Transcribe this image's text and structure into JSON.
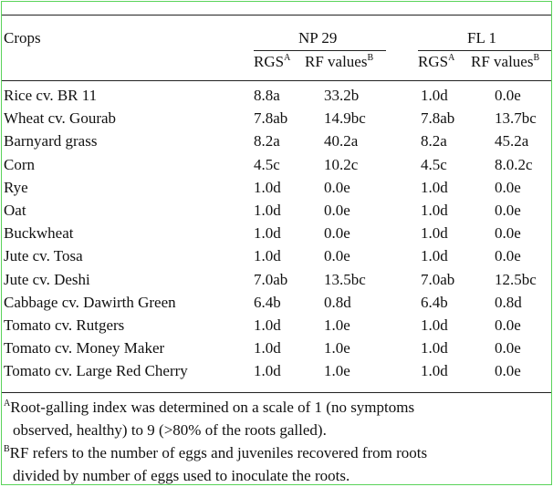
{
  "table": {
    "header": {
      "crops_label": "Crops",
      "group1": "NP 29",
      "group2": "FL 1",
      "rgs_label": "RGS",
      "rgs_sup": "A",
      "rf_label": "RF values",
      "rf_sup": "B"
    },
    "rows": [
      {
        "crop": "Rice cv. BR 11",
        "np_rgs": "8.8a",
        "np_rf": "33.2b",
        "fl_rgs": "1.0d",
        "fl_rf": "0.0e"
      },
      {
        "crop": "Wheat cv. Gourab",
        "np_rgs": "7.8ab",
        "np_rf": "14.9bc",
        "fl_rgs": "7.8ab",
        "fl_rf": "13.7bc"
      },
      {
        "crop": "Barnyard grass",
        "np_rgs": "8.2a",
        "np_rf": "40.2a",
        "fl_rgs": "8.2a",
        "fl_rf": "45.2a"
      },
      {
        "crop": "Corn",
        "np_rgs": "4.5c",
        "np_rf": "10.2c",
        "fl_rgs": "4.5c",
        "fl_rf": "8.0.2c"
      },
      {
        "crop": "Rye",
        "np_rgs": "1.0d",
        "np_rf": "0.0e",
        "fl_rgs": "1.0d",
        "fl_rf": "0.0e"
      },
      {
        "crop": "Oat",
        "np_rgs": "1.0d",
        "np_rf": "0.0e",
        "fl_rgs": "1.0d",
        "fl_rf": "0.0e"
      },
      {
        "crop": "Buckwheat",
        "np_rgs": "1.0d",
        "np_rf": "0.0e",
        "fl_rgs": "1.0d",
        "fl_rf": "0.0e"
      },
      {
        "crop": "Jute cv. Tosa",
        "np_rgs": "1.0d",
        "np_rf": "0.0e",
        "fl_rgs": "1.0d",
        "fl_rf": "0.0e"
      },
      {
        "crop": "Jute cv. Deshi",
        "np_rgs": "7.0ab",
        "np_rf": "13.5bc",
        "fl_rgs": "7.0ab",
        "fl_rf": "12.5bc"
      },
      {
        "crop": "Cabbage cv. Dawirth Green",
        "np_rgs": "6.4b",
        "np_rf": "0.8d",
        "fl_rgs": "6.4b",
        "fl_rf": "0.8d"
      },
      {
        "crop": "Tomato cv. Rutgers",
        "np_rgs": "1.0d",
        "np_rf": "1.0e",
        "fl_rgs": "1.0d",
        "fl_rf": "0.0e"
      },
      {
        "crop": "Tomato cv. Money Maker",
        "np_rgs": "1.0d",
        "np_rf": "1.0e",
        "fl_rgs": "1.0d",
        "fl_rf": "0.0e"
      },
      {
        "crop": "Tomato cv. Large Red Cherry",
        "np_rgs": "1.0d",
        "np_rf": "1.0e",
        "fl_rgs": "1.0d",
        "fl_rf": "0.0e"
      }
    ]
  },
  "footnotes": {
    "a_marker": "A",
    "a_line1": "Root-galling index was determined on a scale of 1 (no symptoms",
    "a_line2": "observed, healthy) to 9 (>80% of the roots galled).",
    "b_marker": "B",
    "b_line1": "RF refers to the number of eggs and juveniles recovered from roots",
    "b_line2": "divided by number of eggs used to inoculate the roots."
  }
}
